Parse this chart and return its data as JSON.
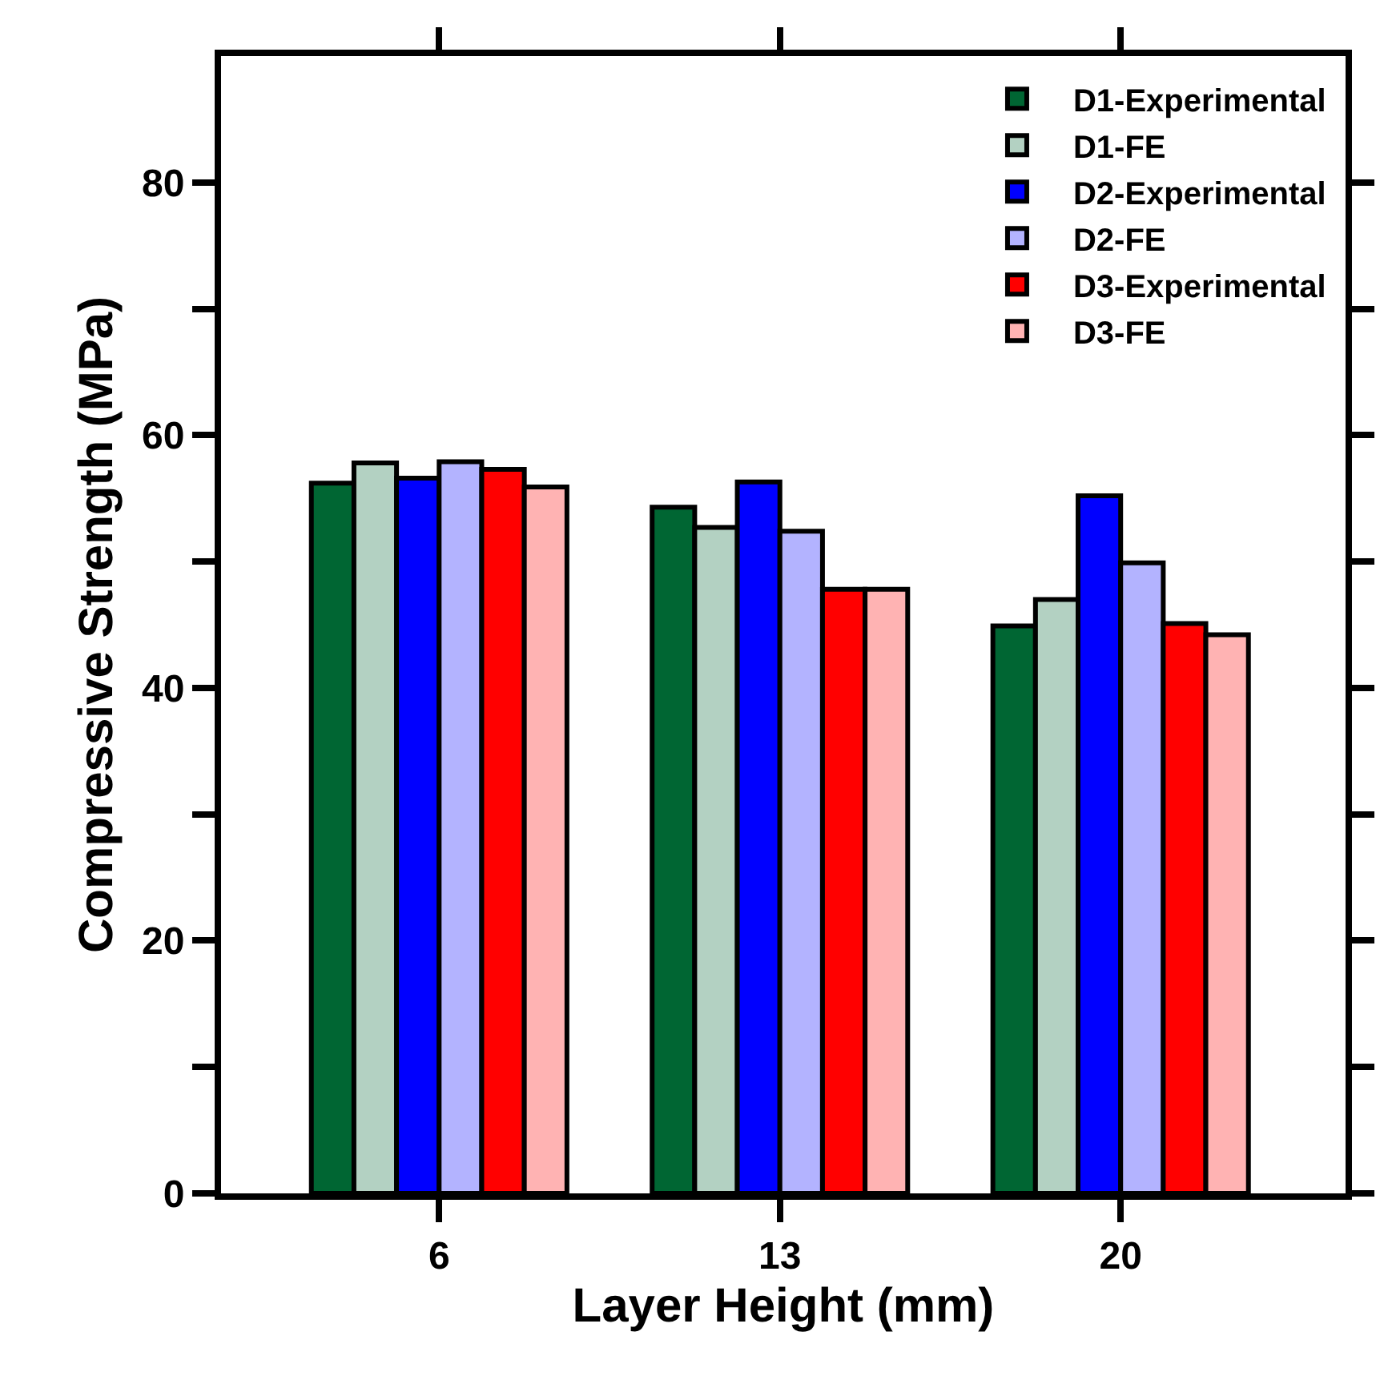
{
  "chart_data": {
    "type": "bar",
    "xlabel": "Layer Height (mm)",
    "ylabel": "Compressive Strength (MPa)",
    "categories": [
      "6",
      "13",
      "20"
    ],
    "series": [
      {
        "name": "D1-Experimental",
        "color": "#006633",
        "values": [
          56.2,
          54.3,
          44.9
        ]
      },
      {
        "name": "D1-FE",
        "color": "#b3d1c2",
        "values": [
          57.8,
          52.7,
          47.0
        ]
      },
      {
        "name": "D2-Experimental",
        "color": "#0000ff",
        "values": [
          56.6,
          56.3,
          55.2
        ]
      },
      {
        "name": "D2-FE",
        "color": "#b3b3ff",
        "values": [
          57.9,
          52.4,
          49.9
        ]
      },
      {
        "name": "D3-Experimental",
        "color": "#ff0000",
        "values": [
          57.3,
          47.8,
          45.1
        ]
      },
      {
        "name": "D3-FE",
        "color": "#ffb3b3",
        "values": [
          55.9,
          47.8,
          44.2
        ]
      }
    ],
    "ylim": [
      0,
      90
    ],
    "yticks": [
      0,
      {
        "value": 10,
        "label": null
      },
      20,
      {
        "value": 30,
        "label": null
      },
      40,
      {
        "value": 50,
        "label": null
      },
      60,
      {
        "value": 70,
        "label": null
      },
      80
    ],
    "legend": "top right"
  }
}
